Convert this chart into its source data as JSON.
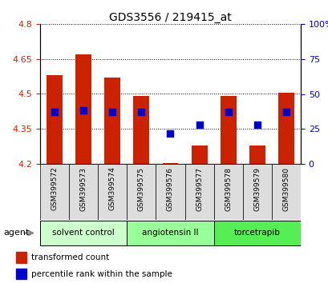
{
  "title": "GDS3556 / 219415_at",
  "samples": [
    "GSM399572",
    "GSM399573",
    "GSM399574",
    "GSM399575",
    "GSM399576",
    "GSM399577",
    "GSM399578",
    "GSM399579",
    "GSM399580"
  ],
  "transformed_count": [
    4.58,
    4.67,
    4.57,
    4.49,
    4.205,
    4.28,
    4.49,
    4.28,
    4.505
  ],
  "baseline": 4.2,
  "percentile_rank": [
    37,
    38,
    37,
    37,
    22,
    28,
    37,
    28,
    37
  ],
  "ylim_left": [
    4.2,
    4.8
  ],
  "ylim_right": [
    0,
    100
  ],
  "yticks_left": [
    4.2,
    4.35,
    4.5,
    4.65,
    4.8
  ],
  "yticks_right": [
    0,
    25,
    50,
    75,
    100
  ],
  "ytick_labels_left": [
    "4.2",
    "4.35",
    "4.5",
    "4.65",
    "4.8"
  ],
  "ytick_labels_right": [
    "0",
    "25",
    "50",
    "75",
    "100%"
  ],
  "bar_color": "#cc2200",
  "dot_color": "#0000cc",
  "grid_color": "#000000",
  "agent_groups": [
    {
      "label": "solvent control",
      "indices": [
        0,
        1,
        2
      ],
      "color": "#ccffcc"
    },
    {
      "label": "angiotensin II",
      "indices": [
        3,
        4,
        5
      ],
      "color": "#99ff99"
    },
    {
      "label": "torcetrapib",
      "indices": [
        6,
        7,
        8
      ],
      "color": "#55ee55"
    }
  ],
  "agent_label": "agent",
  "legend_bar_label": "transformed count",
  "legend_dot_label": "percentile rank within the sample",
  "bg_color": "#ffffff",
  "plot_bg_color": "#ffffff",
  "tick_label_color_left": "#cc2200",
  "tick_label_color_right": "#0000cc",
  "bar_width": 0.55,
  "dot_size": 40,
  "cell_color": "#dddddd"
}
